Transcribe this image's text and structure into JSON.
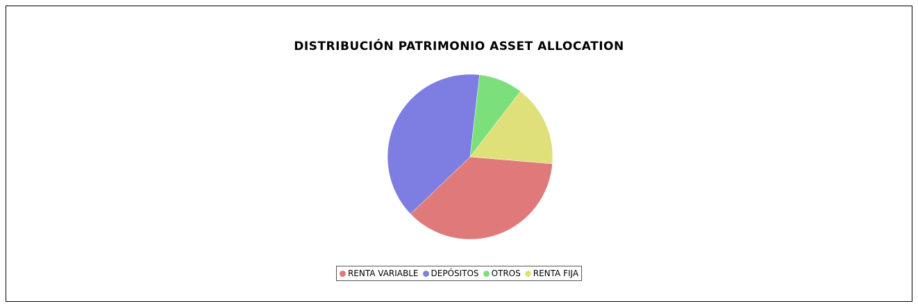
{
  "chart_data": {
    "type": "pie",
    "title": "DISTRIBUCIÓN PATRIMONIO ASSET ALLOCATION",
    "categories": [
      "RENTA VARIABLE",
      "DEPÓSITOS",
      "OTROS",
      "RENTA FIJA"
    ],
    "values": [
      36.5,
      39,
      8.6,
      15.9
    ],
    "colors": [
      "#e07a7a",
      "#7d7de2",
      "#7be07b",
      "#e0e07b"
    ]
  }
}
